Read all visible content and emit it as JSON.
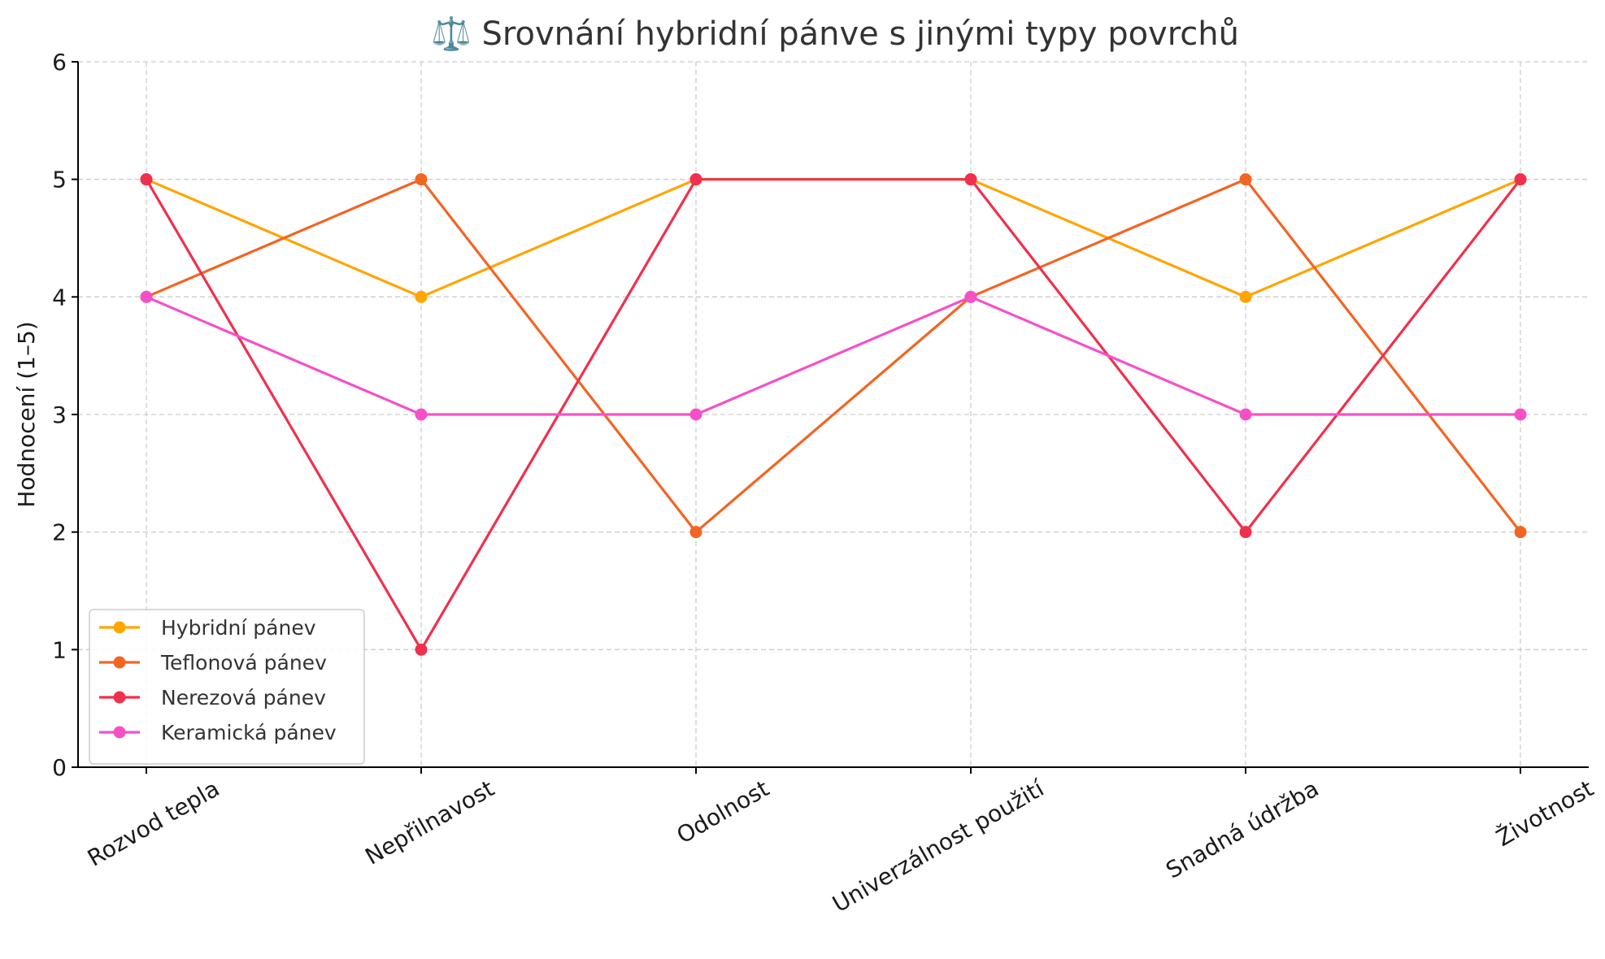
{
  "chart_data": {
    "type": "line",
    "title": "⚖️ Srovnání hybridní pánve s jinými typy povrchů",
    "xlabel": "",
    "ylabel": "Hodnocení (1–5)",
    "ylim": [
      0,
      6
    ],
    "yticks": [
      "0",
      "1",
      "2",
      "3",
      "4",
      "5",
      "6"
    ],
    "grid": true,
    "legend_position": "bottom-left",
    "categories": [
      "Rozvod tepla",
      "Nepřilnavost",
      "Odolnost",
      "Univerzálnost použití",
      "Snadná údržba",
      "Životnost"
    ],
    "series": [
      {
        "name": "Hybridní pánev",
        "color": "#FFA500",
        "values": [
          5,
          4,
          5,
          5,
          4,
          5
        ]
      },
      {
        "name": "Teflonová pánev",
        "color": "#F26522",
        "values": [
          4,
          5,
          2,
          4,
          5,
          2
        ]
      },
      {
        "name": "Nerezová pánev",
        "color": "#F0304E",
        "values": [
          5,
          1,
          5,
          5,
          2,
          5
        ]
      },
      {
        "name": "Keramická pánev",
        "color": "#F550C8",
        "values": [
          4,
          3,
          3,
          4,
          3,
          3
        ]
      }
    ]
  }
}
